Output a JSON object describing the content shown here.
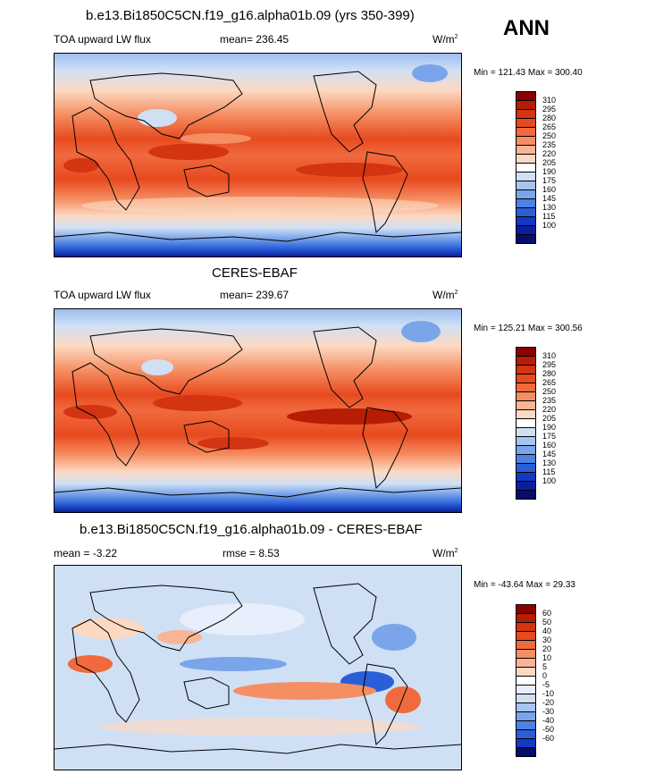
{
  "page": {
    "season": "ANN"
  },
  "panels": [
    {
      "title": "b.e13.Bi1850C5CN.f19_g16.alpha01b.09 (yrs 350-399)",
      "left_label": "TOA upward LW flux",
      "center_label": "mean= 236.45",
      "units_base": "W/m",
      "units_sup": "2",
      "minmax": "Min = 121.43 Max = 300.40"
    },
    {
      "title": "CERES-EBAF",
      "left_label": "TOA upward LW flux",
      "center_label": "mean= 239.67",
      "units_base": "W/m",
      "units_sup": "2",
      "minmax": "Min = 125.21 Max = 300.56"
    },
    {
      "title": "b.e13.Bi1850C5CN.f19_g16.alpha01b.09 - CERES-EBAF",
      "left_label": "mean =  -3.22",
      "center_label": "rmse =   8.53",
      "units_base": "W/m",
      "units_sup": "2",
      "minmax": "Min = -43.64 Max =  29.33"
    }
  ],
  "colorbars": {
    "flux": {
      "labels": [
        "310",
        "295",
        "280",
        "265",
        "250",
        "235",
        "220",
        "205",
        "190",
        "175",
        "160",
        "145",
        "130",
        "115",
        "100"
      ],
      "colors": [
        "#8b0000",
        "#b51d05",
        "#d33412",
        "#e84a1f",
        "#f06a3e",
        "#f58f63",
        "#f9b593",
        "#fcd9c2",
        "#ffffff",
        "#cfe0f5",
        "#a6c5ef",
        "#7aa5ea",
        "#4d82e4",
        "#2a5fd8",
        "#1438c4",
        "#0b1f9c",
        "#060d6c"
      ]
    },
    "diff": {
      "labels": [
        "60",
        "50",
        "40",
        "30",
        "20",
        "10",
        "5",
        "0",
        "-5",
        "-10",
        "-20",
        "-30",
        "-40",
        "-50",
        "-60"
      ],
      "colors": [
        "#8b0000",
        "#b51d05",
        "#d33412",
        "#e84a1f",
        "#f06a3e",
        "#f58f63",
        "#f9b593",
        "#fcd9c2",
        "#ffffff",
        "#e8eefb",
        "#cfe0f5",
        "#a6c5ef",
        "#7aa5ea",
        "#4d82e4",
        "#2a5fd8",
        "#1438c4",
        "#060d6c"
      ]
    }
  }
}
